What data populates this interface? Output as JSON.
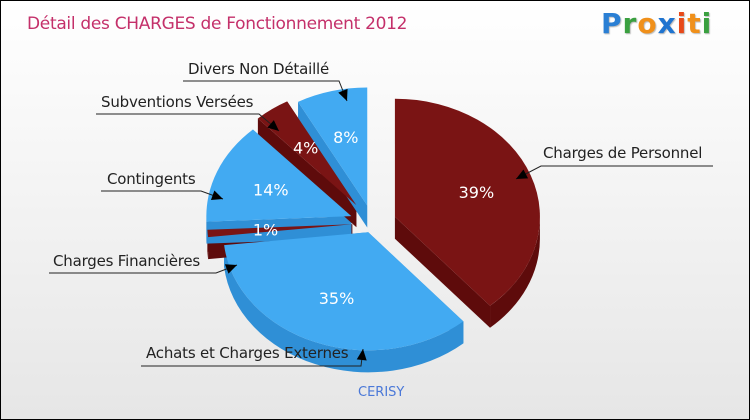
{
  "title": "Détail des CHARGES de Fonctionnement 2012",
  "logo": {
    "text": "Proxiti",
    "letters": [
      {
        "ch": "P",
        "color": "#2a7fd4"
      },
      {
        "ch": "r",
        "color": "#3aa040"
      },
      {
        "ch": "o",
        "color": "#f0901a"
      },
      {
        "ch": "x",
        "color": "#1f74d0"
      },
      {
        "ch": "i",
        "color": "#e84a1a"
      },
      {
        "ch": "t",
        "color": "#f0901a"
      },
      {
        "ch": "i",
        "color": "#3aa040"
      }
    ]
  },
  "chart_data": {
    "type": "pie",
    "title": "Détail des CHARGES de Fonctionnement 2012",
    "subtitle": "CERISY",
    "slices": [
      {
        "label": "Charges de Personnel",
        "value": 39,
        "pct_label": "39%",
        "color": "#7a1414",
        "side": "#5e0b0b"
      },
      {
        "label": "Achats et Charges Externes",
        "value": 35,
        "pct_label": "35%",
        "color": "#42aaf2",
        "side": "#2f8fd6"
      },
      {
        "label": "Charges Financières",
        "value": 1,
        "pct_label": "1%",
        "color": "#7a1414",
        "side": "#5e0b0b"
      },
      {
        "label": "Contingents",
        "value": 14,
        "pct_label": "14%",
        "color": "#42aaf2",
        "side": "#2f8fd6"
      },
      {
        "label": "Subventions Versées",
        "value": 4,
        "pct_label": "4%",
        "color": "#7a1414",
        "side": "#5e0b0b"
      },
      {
        "label": "Divers Non Détaillé",
        "value": 8,
        "pct_label": "8%",
        "color": "#42aaf2",
        "side": "#2f8fd6"
      }
    ]
  }
}
